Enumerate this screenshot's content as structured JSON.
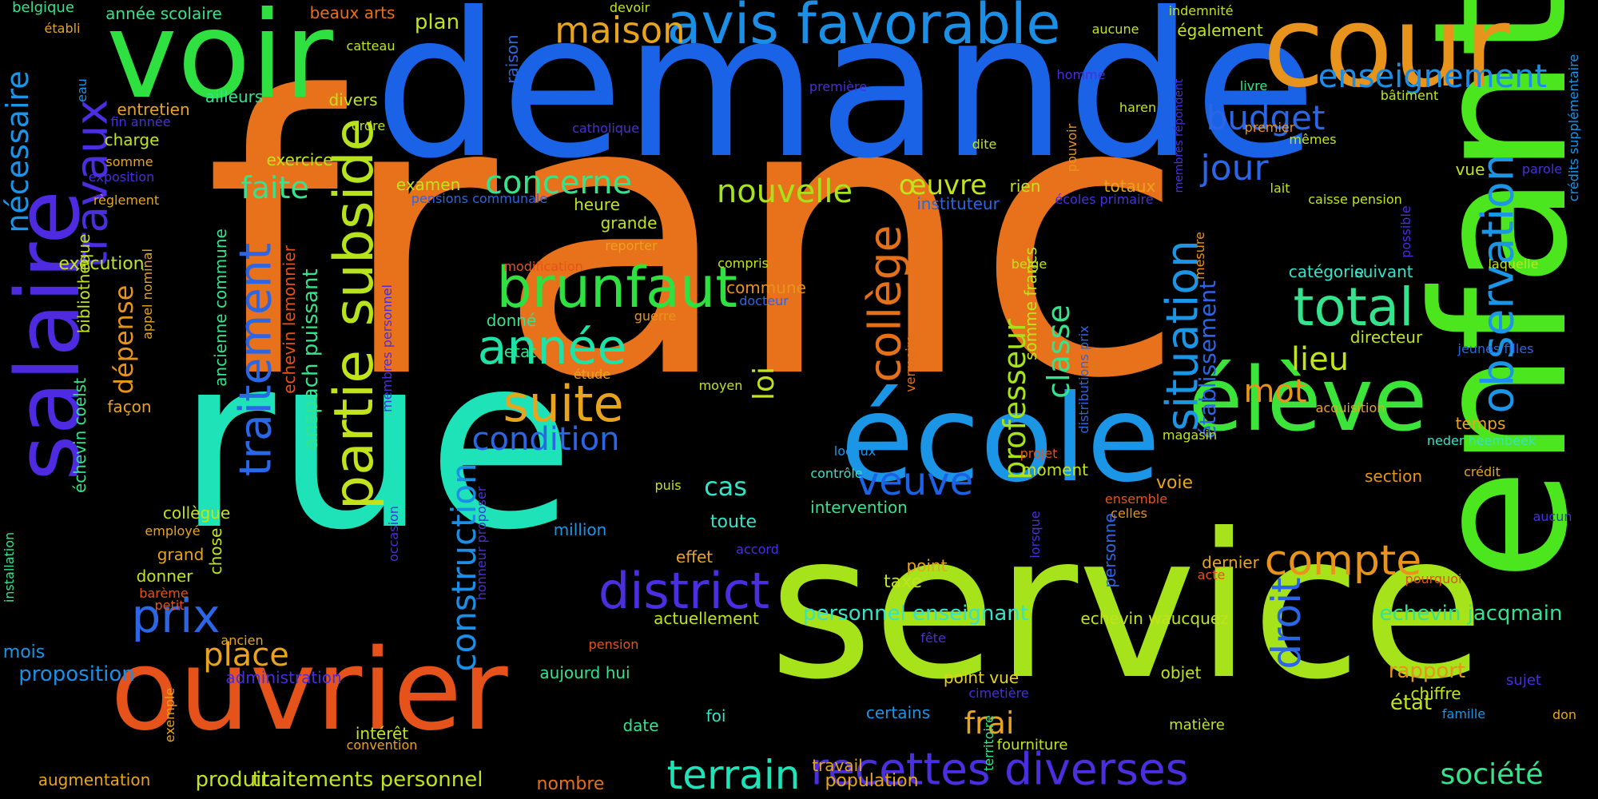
{
  "words": [
    {
      "text": "franc",
      "color": "#e8721c"
    },
    {
      "text": "demande",
      "color": "#1a63e6"
    },
    {
      "text": "rue",
      "color": "#1ee2b8"
    },
    {
      "text": "service",
      "color": "#a6e31a"
    },
    {
      "text": "enfant",
      "color": "#4ce61f"
    },
    {
      "text": "école",
      "color": "#1b95e6"
    },
    {
      "text": "voir",
      "color": "#2ee040"
    },
    {
      "text": "cour",
      "color": "#e8941c"
    },
    {
      "text": "ouvrier",
      "color": "#e5531a"
    },
    {
      "text": "salaire",
      "color": "#4e2ae0"
    },
    {
      "text": "élève",
      "color": "#3ce43a"
    },
    {
      "text": "avis favorable",
      "color": "#1b8fe6"
    },
    {
      "text": "travaux",
      "color": "#4a2ee0"
    },
    {
      "text": "partie",
      "color": "#c2e21c"
    },
    {
      "text": "subside",
      "color": "#b7e31e"
    },
    {
      "text": "brunfaut",
      "color": "#2ee040"
    },
    {
      "text": "district",
      "color": "#4a2ee0"
    },
    {
      "text": "recettes diverses",
      "color": "#4a2ee0"
    },
    {
      "text": "observation",
      "color": "#1b95e6"
    },
    {
      "text": "total",
      "color": "#34e38c"
    },
    {
      "text": "situation",
      "color": "#1b95e6"
    },
    {
      "text": "suite",
      "color": "#e8a41c"
    },
    {
      "text": "année",
      "color": "#1ee2a6"
    },
    {
      "text": "collège",
      "color": "#e5701a"
    },
    {
      "text": "traitement",
      "color": "#2a66e6"
    },
    {
      "text": "compte",
      "color": "#e8941c"
    },
    {
      "text": "veuve",
      "color": "#1a63e6"
    },
    {
      "text": "prix",
      "color": "#2a66e6"
    },
    {
      "text": "terrain",
      "color": "#1ee2b8"
    },
    {
      "text": "construction",
      "color": "#1b8fe6"
    },
    {
      "text": "droit",
      "color": "#2a66e6"
    },
    {
      "text": "maison",
      "color": "#e8a41c"
    },
    {
      "text": "enseignement",
      "color": "#1b8fe6"
    },
    {
      "text": "jour",
      "color": "#2a66e6"
    },
    {
      "text": "budget",
      "color": "#2a66e6"
    },
    {
      "text": "nécessaire",
      "color": "#1b95e6"
    },
    {
      "text": "condition",
      "color": "#2a66e6"
    },
    {
      "text": "place",
      "color": "#e8a41c"
    },
    {
      "text": "professeur",
      "color": "#a6e31a"
    },
    {
      "text": "classe",
      "color": "#34e38c"
    },
    {
      "text": "nouvelle",
      "color": "#a6e31a"
    },
    {
      "text": "concerne",
      "color": "#34e38c"
    },
    {
      "text": "frai",
      "color": "#e8a41c"
    },
    {
      "text": "lieu",
      "color": "#c2e21c"
    },
    {
      "text": "mot",
      "color": "#e8941c"
    },
    {
      "text": "société",
      "color": "#34e38c"
    },
    {
      "text": "faite",
      "color": "#34e38c"
    },
    {
      "text": "œuvre",
      "color": "#c2e21c"
    },
    {
      "text": "loi",
      "color": "#c2e21c"
    },
    {
      "text": "dépense",
      "color": "#e8941c"
    },
    {
      "text": "cas",
      "color": "#34e3c8"
    },
    {
      "text": "établissement",
      "color": "#2a66e6"
    },
    {
      "text": "personnel enseignant",
      "color": "#34e3c8"
    },
    {
      "text": "echevin jacqmain",
      "color": "#34e38c"
    },
    {
      "text": "rapport",
      "color": "#e8941c"
    },
    {
      "text": "anspach puissant",
      "color": "#34e38c"
    },
    {
      "text": "produit",
      "color": "#c2e21c"
    },
    {
      "text": "traitements personnel",
      "color": "#c2e21c"
    },
    {
      "text": "population",
      "color": "#e8a41c"
    },
    {
      "text": "voie",
      "color": "#e8a41c"
    },
    {
      "text": "taxe",
      "color": "#c2e21c"
    },
    {
      "text": "état",
      "color": "#c2e21c"
    },
    {
      "text": "toute",
      "color": "#34e3c8"
    },
    {
      "text": "million",
      "color": "#1b95e6"
    },
    {
      "text": "nombre",
      "color": "#e5701a"
    },
    {
      "text": "augmentation",
      "color": "#e8a41c"
    },
    {
      "text": "aujourd hui",
      "color": "#34e38c"
    },
    {
      "text": "intérêt",
      "color": "#c2e21c"
    },
    {
      "text": "convention",
      "color": "#e8a41c"
    },
    {
      "text": "date",
      "color": "#34e38c"
    },
    {
      "text": "foi",
      "color": "#34e3c8"
    },
    {
      "text": "certains",
      "color": "#1b95e6"
    },
    {
      "text": "fourniture",
      "color": "#c2e21c"
    },
    {
      "text": "travail",
      "color": "#e8a41c"
    },
    {
      "text": "matière",
      "color": "#c2e21c"
    },
    {
      "text": "objet",
      "color": "#c2e21c"
    },
    {
      "text": "chiffre",
      "color": "#c2e21c"
    },
    {
      "text": "famille",
      "color": "#1b95e6"
    },
    {
      "text": "sujet",
      "color": "#4a2ee0"
    },
    {
      "text": "don",
      "color": "#e8a41c"
    },
    {
      "text": "point vue",
      "color": "#e8d21c"
    },
    {
      "text": "cimetière",
      "color": "#4a2ee0"
    },
    {
      "text": "point",
      "color": "#e8a41c"
    },
    {
      "text": "effet",
      "color": "#e8a41c"
    },
    {
      "text": "actuellement",
      "color": "#c2e21c"
    },
    {
      "text": "echevin waucquez",
      "color": "#c2e21c"
    },
    {
      "text": "dernier",
      "color": "#e8a41c"
    },
    {
      "text": "acte",
      "color": "#e5531a"
    },
    {
      "text": "section",
      "color": "#e8941c"
    },
    {
      "text": "crédit",
      "color": "#e8a41c"
    },
    {
      "text": "aucun",
      "color": "#4a2ee0"
    },
    {
      "text": "pourquoi",
      "color": "#e5531a"
    },
    {
      "text": "échevin coelst",
      "color": "#34e38c"
    },
    {
      "text": "bibliothèque",
      "color": "#c2e21c"
    },
    {
      "text": "appel nominal",
      "color": "#e8a41c"
    },
    {
      "text": "façon",
      "color": "#e8a41c"
    },
    {
      "text": "collègue",
      "color": "#c2e21c"
    },
    {
      "text": "employé",
      "color": "#e8a41c"
    },
    {
      "text": "grand",
      "color": "#e8a41c"
    },
    {
      "text": "chose",
      "color": "#c2e21c"
    },
    {
      "text": "donner",
      "color": "#c2e21c"
    },
    {
      "text": "barème",
      "color": "#e5531a"
    },
    {
      "text": "petit",
      "color": "#e5531a"
    },
    {
      "text": "ancien",
      "color": "#e8a41c"
    },
    {
      "text": "mois",
      "color": "#1b95e6"
    },
    {
      "text": "proposition",
      "color": "#1b8fe6"
    },
    {
      "text": "administration",
      "color": "#4a2ee0"
    },
    {
      "text": "exemple",
      "color": "#e8a41c"
    },
    {
      "text": "installation",
      "color": "#34e38c"
    },
    {
      "text": "exécution",
      "color": "#c2e21c"
    },
    {
      "text": "ancienne commune",
      "color": "#34e38c"
    },
    {
      "text": "echevin lemonnier",
      "color": "#e5531a"
    },
    {
      "text": "membres personnel",
      "color": "#4a2ee0"
    },
    {
      "text": "exercice",
      "color": "#c2e21c"
    },
    {
      "text": "charge",
      "color": "#c2e21c"
    },
    {
      "text": "entretien",
      "color": "#e8a41c"
    },
    {
      "text": "fin année",
      "color": "#4a2ee0"
    },
    {
      "text": "somme",
      "color": "#e8a41c"
    },
    {
      "text": "exposition",
      "color": "#4a2ee0"
    },
    {
      "text": "règlement",
      "color": "#e8a41c"
    },
    {
      "text": "ailleurs",
      "color": "#34e38c"
    },
    {
      "text": "divers",
      "color": "#c2e21c"
    },
    {
      "text": "ordre",
      "color": "#c2e21c"
    },
    {
      "text": "catteau",
      "color": "#c2e21c"
    },
    {
      "text": "plan",
      "color": "#c2e21c"
    },
    {
      "text": "beaux arts",
      "color": "#e5701a"
    },
    {
      "text": "année scolaire",
      "color": "#34e38c"
    },
    {
      "text": "belgique",
      "color": "#34e38c"
    },
    {
      "text": "établi",
      "color": "#e8a41c"
    },
    {
      "text": "eau",
      "color": "#1b95e6"
    },
    {
      "text": "raison",
      "color": "#2a66e6"
    },
    {
      "text": "devoir",
      "color": "#c2e21c"
    },
    {
      "text": "première",
      "color": "#4a2ee0"
    },
    {
      "text": "catholique",
      "color": "#4a2ee0"
    },
    {
      "text": "examen",
      "color": "#c2e21c"
    },
    {
      "text": "pensions communale",
      "color": "#2a66e6"
    },
    {
      "text": "heure",
      "color": "#c2e21c"
    },
    {
      "text": "grande",
      "color": "#c2e21c"
    },
    {
      "text": "reporter",
      "color": "#e8a41c"
    },
    {
      "text": "modification",
      "color": "#e5531a"
    },
    {
      "text": "compris",
      "color": "#c2e21c"
    },
    {
      "text": "commune",
      "color": "#e8941c"
    },
    {
      "text": "docteur",
      "color": "#2a66e6"
    },
    {
      "text": "guerre",
      "color": "#e8941c"
    },
    {
      "text": "donné",
      "color": "#34e38c"
    },
    {
      "text": "etat",
      "color": "#34e38c"
    },
    {
      "text": "étude",
      "color": "#e8a41c"
    },
    {
      "text": "moyen",
      "color": "#c2e21c"
    },
    {
      "text": "vermeire",
      "color": "#e5701a"
    },
    {
      "text": "locaux",
      "color": "#1b95e6"
    },
    {
      "text": "contrôle",
      "color": "#34e3c8"
    },
    {
      "text": "intervention",
      "color": "#34e38c"
    },
    {
      "text": "puis",
      "color": "#c2e21c"
    },
    {
      "text": "accord",
      "color": "#4a2ee0"
    },
    {
      "text": "pension",
      "color": "#e5531a"
    },
    {
      "text": "honneur proposer",
      "color": "#4a2ee0"
    },
    {
      "text": "occasion",
      "color": "#4a2ee0"
    },
    {
      "text": "moment",
      "color": "#c2e21c"
    },
    {
      "text": "projet",
      "color": "#e5531a"
    },
    {
      "text": "distributions prix",
      "color": "#2a66e6"
    },
    {
      "text": "somme francs",
      "color": "#c2e21c"
    },
    {
      "text": "personne",
      "color": "#2a66e6"
    },
    {
      "text": "lorsque",
      "color": "#4a2ee0"
    },
    {
      "text": "territoire",
      "color": "#34e38c"
    },
    {
      "text": "fête",
      "color": "#4a2ee0"
    },
    {
      "text": "ensemble",
      "color": "#e5531a"
    },
    {
      "text": "celles",
      "color": "#e8941c"
    },
    {
      "text": "magasin",
      "color": "#c2e21c"
    },
    {
      "text": "mesure",
      "color": "#e8941c"
    },
    {
      "text": "belge",
      "color": "#c2e21c"
    },
    {
      "text": "rien",
      "color": "#c2e21c"
    },
    {
      "text": "totaux",
      "color": "#e8a41c"
    },
    {
      "text": "instituteur",
      "color": "#2a66e6"
    },
    {
      "text": "écoles primaire",
      "color": "#4a2ee0"
    },
    {
      "text": "lait",
      "color": "#c2e21c"
    },
    {
      "text": "caisse pension",
      "color": "#c2e21c"
    },
    {
      "text": "possible",
      "color": "#4a2ee0"
    },
    {
      "text": "vue",
      "color": "#c2e21c"
    },
    {
      "text": "parole",
      "color": "#4a2ee0"
    },
    {
      "text": "catégorie",
      "color": "#34e3c8"
    },
    {
      "text": "suivant",
      "color": "#34e3c8"
    },
    {
      "text": "laquelle",
      "color": "#c2e21c"
    },
    {
      "text": "directeur",
      "color": "#c2e21c"
    },
    {
      "text": "jeunes filles",
      "color": "#2a66e6"
    },
    {
      "text": "acquisition",
      "color": "#e8a41c"
    },
    {
      "text": "temps",
      "color": "#e8a41c"
    },
    {
      "text": "neder heembeek",
      "color": "#34e3c8"
    },
    {
      "text": "dite",
      "color": "#c2e21c"
    },
    {
      "text": "pouvoir",
      "color": "#e8941c"
    },
    {
      "text": "homme",
      "color": "#4a2ee0"
    },
    {
      "text": "aucune",
      "color": "#c2e21c"
    },
    {
      "text": "haren",
      "color": "#c2e21c"
    },
    {
      "text": "indemnité",
      "color": "#c2e21c"
    },
    {
      "text": "également",
      "color": "#c2e21c"
    },
    {
      "text": "livre",
      "color": "#34e38c"
    },
    {
      "text": "membres répondent",
      "color": "#4a2ee0"
    },
    {
      "text": "premier",
      "color": "#e8941c"
    },
    {
      "text": "mêmes",
      "color": "#c2e21c"
    },
    {
      "text": "bâtiment",
      "color": "#c2e21c"
    },
    {
      "text": "crédits supplémentaire",
      "color": "#1b95e6"
    }
  ]
}
